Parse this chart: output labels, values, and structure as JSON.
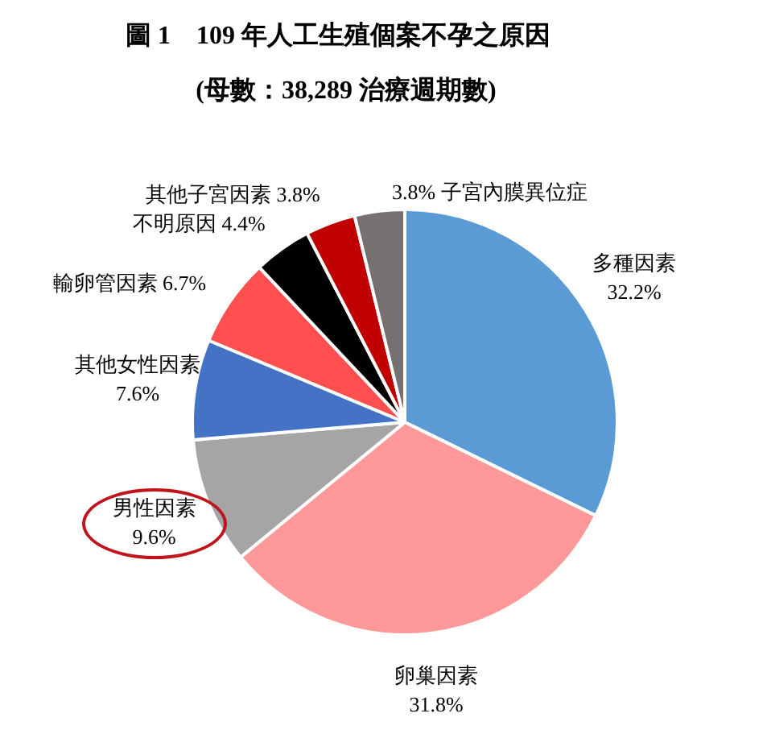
{
  "chart_data": {
    "type": "pie",
    "title": "圖 1　109 年人工生殖個案不孕之原因",
    "subtitle": "(母數：38,289 治療週期數)",
    "categories": [
      "多種因素",
      "卵巢因素",
      "男性因素",
      "其他女性因素",
      "輸卵管因素",
      "不明原因",
      "其他子宮因素",
      "子宮內膜異位症"
    ],
    "values": [
      32.2,
      31.8,
      9.6,
      7.6,
      6.7,
      4.4,
      3.8,
      3.8
    ],
    "colors": [
      "#5b9bd5",
      "#ff9999",
      "#a5a5a5",
      "#4472c4",
      "#ff4f4f",
      "#000000",
      "#c00000",
      "#767171"
    ],
    "value_labels": [
      "32.2%",
      "31.8%",
      "9.6%",
      "7.6%",
      "6.7%",
      "4.4%",
      "3.8%",
      "3.8%"
    ],
    "legend": false
  }
}
